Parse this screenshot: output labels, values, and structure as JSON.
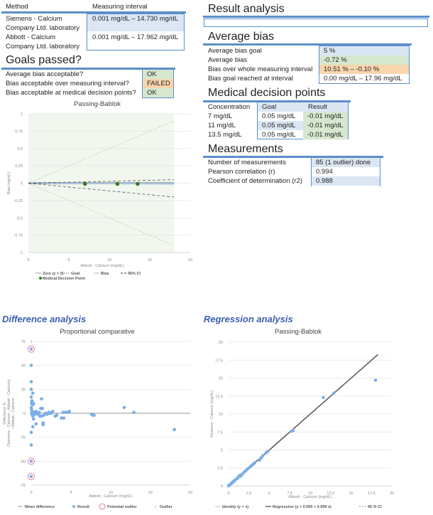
{
  "methods": {
    "col_method": "Method",
    "col_interval": "Measuring interval",
    "rows": [
      {
        "method": "Siemens - Calcium",
        "lab": "Company Ltd. laboratory",
        "interval": "0.001 mg/dL – 14.730 mg/dL"
      },
      {
        "method": "Abbott - Calcium",
        "lab": "Company Ltd. laboratory",
        "interval": "0.001 mg/dL – 17.962 mg/dL"
      }
    ]
  },
  "goals": {
    "title": "Goals passed?",
    "rows": [
      {
        "label": "Average bias acceptable?",
        "status": "OK"
      },
      {
        "label": "Bias acceptable over measuring interval?",
        "status": "FAILED"
      },
      {
        "label": "Bias acceptable at medical decision points?",
        "status": "OK"
      }
    ]
  },
  "result_analysis": {
    "title": "Result analysis",
    "text": ""
  },
  "average_bias": {
    "title": "Average bias",
    "rows": [
      {
        "label": "Average bias goal",
        "value": "5 %"
      },
      {
        "label": "Average bias",
        "value": "-0.72 %"
      },
      {
        "label": "Bias over whole measuring interval",
        "value": "10.51 % – -0.10 %"
      },
      {
        "label": "Bias goal reached at interval",
        "value": "0.00 mg/dL – 17.96 mg/dL"
      }
    ]
  },
  "mdp": {
    "title": "Medical decision points",
    "headers": [
      "Concentration",
      "Goal",
      "Result"
    ],
    "rows": [
      [
        "7 mg/dL",
        "0.05 mg/dL",
        "-0.01 mg/dL"
      ],
      [
        "11 mg/dL",
        "0.05 mg/dL",
        "-0.01 mg/dL"
      ],
      [
        "13.5 mg/dL",
        "0.05 mg/dL",
        "-0.01 mg/dL"
      ]
    ]
  },
  "measurements": {
    "title": "Measurements",
    "rows": [
      {
        "label": "Number of measurements",
        "value": "85  (1 outlier) done"
      },
      {
        "label": "Pearson correlation (r)",
        "value": "0.994"
      },
      {
        "label": "Coefficient of determination (r2)",
        "value": "0.988"
      }
    ]
  },
  "sections": {
    "difference": "Difference analysis",
    "regression": "Regression analysis"
  },
  "chart_data": [
    {
      "type": "line",
      "title": "Passing-Bablok",
      "xlabel": "Abbott - Calcium (mg/dL)",
      "ylabel": "Bias (mg/dL)",
      "xlim": [
        0,
        20
      ],
      "ylim": [
        -1,
        1
      ],
      "xticks": [
        0,
        5,
        10,
        15,
        20
      ],
      "yticks": [
        1,
        0.75,
        0.5,
        0.25,
        0,
        -0.25,
        -0.5,
        -0.75,
        -1
      ],
      "shaded_range": [
        0,
        18
      ],
      "series": [
        {
          "name": "Zero (y = 0)",
          "x": [
            0,
            18
          ],
          "y": [
            0,
            0
          ]
        },
        {
          "name": "Goal",
          "x": [
            0,
            18
          ],
          "y": [
            0,
            0.9
          ],
          "y2": [
            0,
            -0.9
          ]
        },
        {
          "name": "Bias",
          "x": [
            0,
            18
          ],
          "y": [
            0,
            -0.01
          ]
        },
        {
          "name": "95% CI",
          "x": [
            0,
            18
          ],
          "y": [
            0,
            0.05
          ],
          "y2": [
            0,
            -0.2
          ]
        },
        {
          "name": "Medical Decision Point",
          "x": [
            7,
            11,
            13.5
          ],
          "y": [
            -0.01,
            -0.01,
            -0.01
          ]
        }
      ],
      "legend": [
        "Zero (y = 0)",
        "Goal",
        "Bias",
        "95% CI",
        "Medical Decision Point"
      ]
    },
    {
      "type": "scatter",
      "title": "Proportional comparative",
      "xlabel": "Abbott - Calcium (mg/dL)",
      "ylabel": [
        "Difference %",
        "(Siemens - Calcium - Abbott - Calcium)",
        "/ Abbott - Calcium"
      ],
      "xlim": [
        0,
        20
      ],
      "ylim": [
        -75,
        75
      ],
      "xticks": [
        0,
        5,
        10,
        15,
        20
      ],
      "yticks": [
        75,
        50,
        25,
        0,
        -25,
        -50,
        -75
      ],
      "mean_difference": 0,
      "points": [
        [
          0,
          67
        ],
        [
          0,
          50
        ],
        [
          0,
          33
        ],
        [
          0,
          25
        ],
        [
          0,
          17
        ],
        [
          0.05,
          12
        ],
        [
          0.1,
          13
        ],
        [
          0.05,
          10
        ],
        [
          0.2,
          9
        ],
        [
          0.15,
          11
        ],
        [
          0.3,
          10
        ],
        [
          0.2,
          21
        ],
        [
          0,
          6
        ],
        [
          0.05,
          4
        ],
        [
          0.1,
          2
        ],
        [
          0.05,
          0
        ],
        [
          0.1,
          -1
        ],
        [
          0.2,
          -3
        ],
        [
          0.3,
          -6
        ],
        [
          0.4,
          1
        ],
        [
          0.5,
          -1
        ],
        [
          0.6,
          2
        ],
        [
          0.8,
          0
        ],
        [
          1,
          1
        ],
        [
          1.2,
          5
        ],
        [
          1.3,
          15
        ],
        [
          1.4,
          5
        ],
        [
          1.5,
          -10
        ],
        [
          1.5,
          -12
        ],
        [
          1.3,
          -3
        ],
        [
          1.6,
          -2
        ],
        [
          0.6,
          -11
        ],
        [
          0.2,
          -14
        ],
        [
          0,
          -20
        ],
        [
          0,
          -33
        ],
        [
          0,
          -50
        ],
        [
          0,
          -66
        ],
        [
          2,
          -1
        ],
        [
          2.2,
          1
        ],
        [
          2.5,
          0
        ],
        [
          2.7,
          2
        ],
        [
          3,
          -3
        ],
        [
          3.2,
          -2
        ],
        [
          3.8,
          -5
        ],
        [
          4.1,
          -5
        ],
        [
          4,
          1
        ],
        [
          4.3,
          1
        ],
        [
          4.6,
          1
        ],
        [
          4.8,
          2
        ],
        [
          7.6,
          -1
        ],
        [
          7.8,
          -2
        ],
        [
          7.9,
          -2
        ],
        [
          11.7,
          6
        ],
        [
          12.9,
          1
        ],
        [
          18,
          -17
        ],
        [
          1.8,
          0
        ],
        [
          2.3,
          0
        ],
        [
          0.7,
          0
        ],
        [
          0.9,
          -1
        ],
        [
          1.1,
          -3
        ]
      ],
      "potential_outliers": [
        [
          0,
          67
        ],
        [
          0,
          -50
        ],
        [
          0,
          -66
        ]
      ],
      "outliers_offscale": [
        [
          0,
          75
        ]
      ],
      "legend": [
        "Mean difference",
        "Result",
        "Potential outlier",
        "Outlier"
      ]
    },
    {
      "type": "scatter",
      "title": "Passing-Bablok",
      "xlabel": "Abbott - Calcium (mg/dL)",
      "ylabel": "Siemens - Calcium (mg/dL)",
      "xlim": [
        0,
        20
      ],
      "ylim": [
        0,
        20
      ],
      "xticks": [
        0,
        2.5,
        5,
        7.5,
        10,
        12.5,
        15,
        17.5,
        20
      ],
      "yticks": [
        20,
        17.5,
        15,
        12.5,
        10,
        7.5,
        5,
        2.5,
        0
      ],
      "regression": {
        "intercept": 0,
        "slope": 0.999,
        "x_range": [
          0,
          18.3
        ]
      },
      "points": [
        [
          0,
          0
        ],
        [
          0.1,
          0.1
        ],
        [
          0.2,
          0.2
        ],
        [
          0.3,
          0.3
        ],
        [
          0.4,
          0.4
        ],
        [
          0.5,
          0.5
        ],
        [
          0.6,
          0.6
        ],
        [
          0.7,
          0.7
        ],
        [
          0.8,
          0.8
        ],
        [
          1,
          1
        ],
        [
          1.1,
          1.1
        ],
        [
          1.3,
          1.4
        ],
        [
          1.4,
          1.3
        ],
        [
          1.5,
          1.5
        ],
        [
          1.6,
          1.5
        ],
        [
          1.8,
          1.8
        ],
        [
          2,
          2
        ],
        [
          2.2,
          2.2
        ],
        [
          2.4,
          2.4
        ],
        [
          2.6,
          2.6
        ],
        [
          2.8,
          2.8
        ],
        [
          3,
          3
        ],
        [
          3.2,
          3.2
        ],
        [
          3.8,
          3.6
        ],
        [
          4,
          3.9
        ],
        [
          4.2,
          4.2
        ],
        [
          4.6,
          4.6
        ],
        [
          4.8,
          4.8
        ],
        [
          7.7,
          7.6
        ],
        [
          7.9,
          7.7
        ],
        [
          11.6,
          12.3
        ],
        [
          12.9,
          12.9
        ],
        [
          18,
          14.7
        ]
      ],
      "legend": [
        "Identity (y = x)",
        "Regression (y = 0.000 + 0.999 x)",
        "95 % CI"
      ]
    }
  ],
  "colors": {
    "accent": "#5b8fc9",
    "point": "#7aaee6",
    "mdp": "#3d7a1f",
    "outlier": "#e0607a",
    "arrow": "#d06a10",
    "section": "#3a5fb0"
  }
}
